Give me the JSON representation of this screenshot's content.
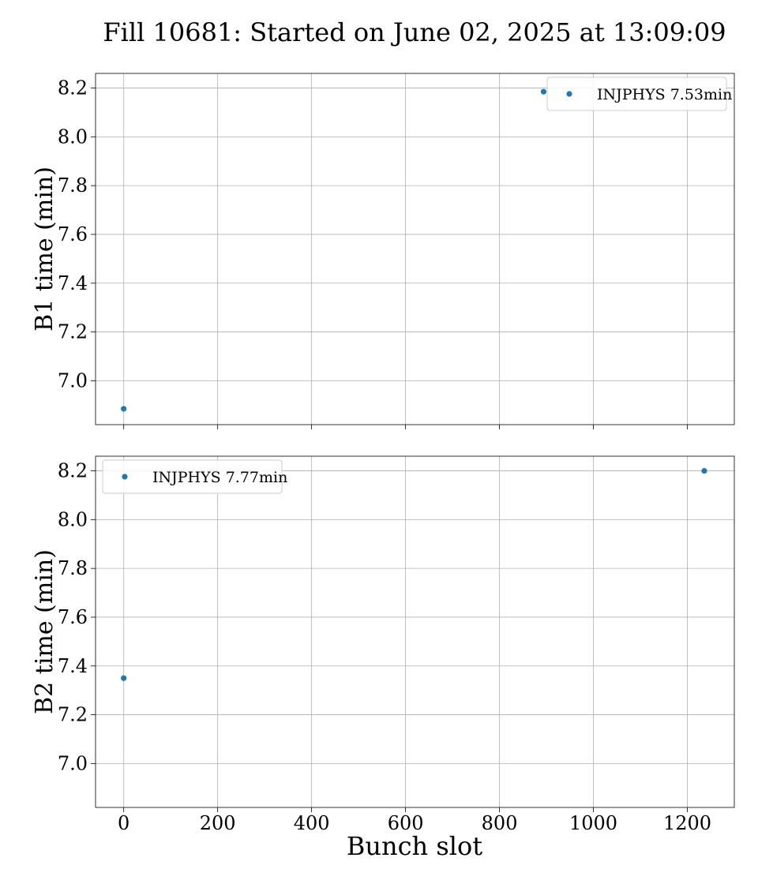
{
  "figure": {
    "title": "Fill 10681: Started on June 02, 2025 at 13:09:09",
    "xlabel": "Bunch slot"
  },
  "chart_data": [
    {
      "type": "scatter",
      "ylabel": "B1 time (min)",
      "xlim": [
        -60,
        1300
      ],
      "ylim": [
        6.82,
        8.26
      ],
      "xticks": [
        0,
        200,
        400,
        600,
        800,
        1000,
        1200
      ],
      "xtick_labels_visible": false,
      "yticks": [
        7.0,
        7.2,
        7.4,
        7.6,
        7.8,
        8.0,
        8.2
      ],
      "grid": true,
      "legend_position": "top-right",
      "series": [
        {
          "name": "INJPHYS 7.53min",
          "color": "#1f77b4",
          "points": [
            {
              "x": 0,
              "y": 6.885
            },
            {
              "x": 894,
              "y": 8.185
            }
          ]
        }
      ]
    },
    {
      "type": "scatter",
      "ylabel": "B2 time (min)",
      "xlim": [
        -60,
        1300
      ],
      "ylim": [
        6.82,
        8.26
      ],
      "xticks": [
        0,
        200,
        400,
        600,
        800,
        1000,
        1200
      ],
      "xtick_labels_visible": true,
      "yticks": [
        7.0,
        7.2,
        7.4,
        7.6,
        7.8,
        8.0,
        8.2
      ],
      "grid": true,
      "legend_position": "top-left",
      "series": [
        {
          "name": "INJPHYS 7.77min",
          "color": "#1f77b4",
          "points": [
            {
              "x": 0,
              "y": 7.35
            },
            {
              "x": 1236,
              "y": 8.2
            }
          ]
        }
      ]
    }
  ]
}
